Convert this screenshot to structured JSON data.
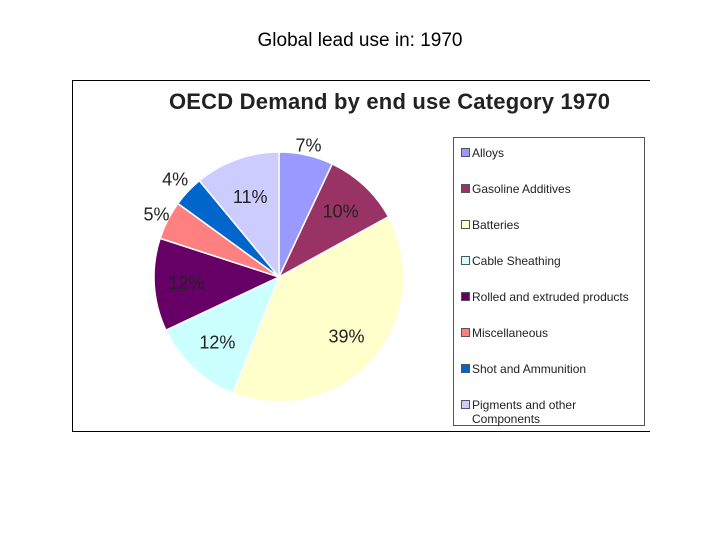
{
  "slide": {
    "title": "Global lead use in: 1970"
  },
  "chart_data": {
    "type": "pie",
    "title": "OECD Demand by end use Category 1970",
    "legend_position": "right",
    "slices": [
      {
        "label": "Alloys",
        "value": 7,
        "display": "7%",
        "color": "#9999ff"
      },
      {
        "label": "Gasoline Additives",
        "value": 10,
        "display": "10%",
        "color": "#993366"
      },
      {
        "label": "Batteries",
        "value": 39,
        "display": "39%",
        "color": "#ffffcc"
      },
      {
        "label": "Cable Sheathing",
        "value": 12,
        "display": "12%",
        "color": "#ccffff"
      },
      {
        "label": "Rolled and extruded products",
        "value": 12,
        "display": "12%",
        "color": "#660066"
      },
      {
        "label": "Miscellaneous",
        "value": 5,
        "display": "5%",
        "color": "#ff8080"
      },
      {
        "label": "Shot and Ammunition",
        "value": 4,
        "display": "4%",
        "color": "#0066cc"
      },
      {
        "label": "Pigments and other Components",
        "value": 11,
        "display": "11%",
        "color": "#ccccff"
      }
    ]
  }
}
